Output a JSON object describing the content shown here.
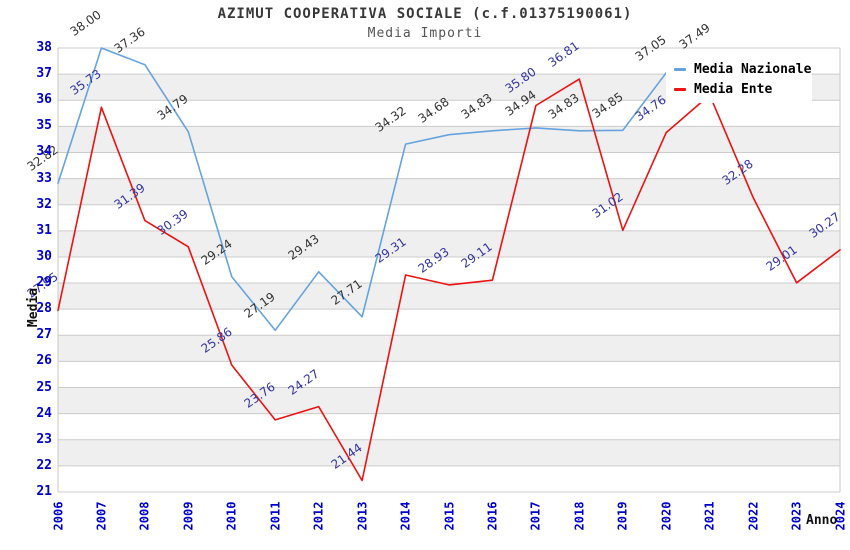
{
  "header": {
    "title": "AZIMUT COOPERATIVA SOCIALE (c.f.01375190061)",
    "subtitle": "Media Importi"
  },
  "legend": {
    "items": [
      {
        "label": "Media Nazionale",
        "color": "#66a3de"
      },
      {
        "label": "Media Ente",
        "color": "#ee1111"
      }
    ]
  },
  "chart_data": {
    "type": "line",
    "title": "AZIMUT COOPERATIVA SOCIALE (c.f.01375190061)",
    "subtitle": "Media Importi",
    "xlabel": "Anno",
    "ylabel": "Media",
    "x": [
      2006,
      2007,
      2008,
      2009,
      2010,
      2011,
      2012,
      2013,
      2014,
      2015,
      2016,
      2017,
      2018,
      2019,
      2020,
      2021,
      2022,
      2023,
      2024
    ],
    "ylim": [
      21,
      38
    ],
    "ytick_step": 1,
    "grid": "horizontal",
    "banding": "alternating 1-unit gray bands",
    "legend_position": "top-right",
    "colors": {
      "grid": "#cccccc",
      "band": "#efefef",
      "border": "#c9c9c9",
      "axis_tick_text": "#0000cc"
    },
    "series": [
      {
        "name": "Media Nazionale",
        "color": "#66a3de",
        "label_color": "#333333",
        "values": [
          32.82,
          38.0,
          37.36,
          34.79,
          29.24,
          27.19,
          29.43,
          27.71,
          34.32,
          34.68,
          34.83,
          34.94,
          34.83,
          34.85,
          37.05,
          37.49,
          null,
          null,
          null
        ],
        "labels": [
          "32.82",
          "38.00",
          "37.36",
          "34.79",
          "29.24",
          "27.19",
          "29.43",
          "27.71",
          "34.32",
          "34.68",
          "34.83",
          "34.94",
          "34.83",
          "34.85",
          "37.05",
          "37.49",
          "",
          "",
          ""
        ]
      },
      {
        "name": "Media Ente",
        "color": "#ee1111",
        "label_color": "#3333a0",
        "values": [
          27.95,
          35.73,
          31.39,
          30.39,
          25.86,
          23.76,
          24.27,
          21.44,
          29.31,
          28.93,
          29.11,
          35.8,
          36.81,
          31.02,
          34.76,
          36.2,
          32.28,
          29.01,
          30.27
        ],
        "labels": [
          "27.95",
          "35.73",
          "31.39",
          "30.39",
          "25.86",
          "23.76",
          "24.27",
          "21.44",
          "29.31",
          "28.93",
          "29.11",
          "35.80",
          "36.81",
          "31.02",
          "34.76",
          "",
          "32.28",
          "29.01",
          "30.27"
        ]
      }
    ]
  }
}
